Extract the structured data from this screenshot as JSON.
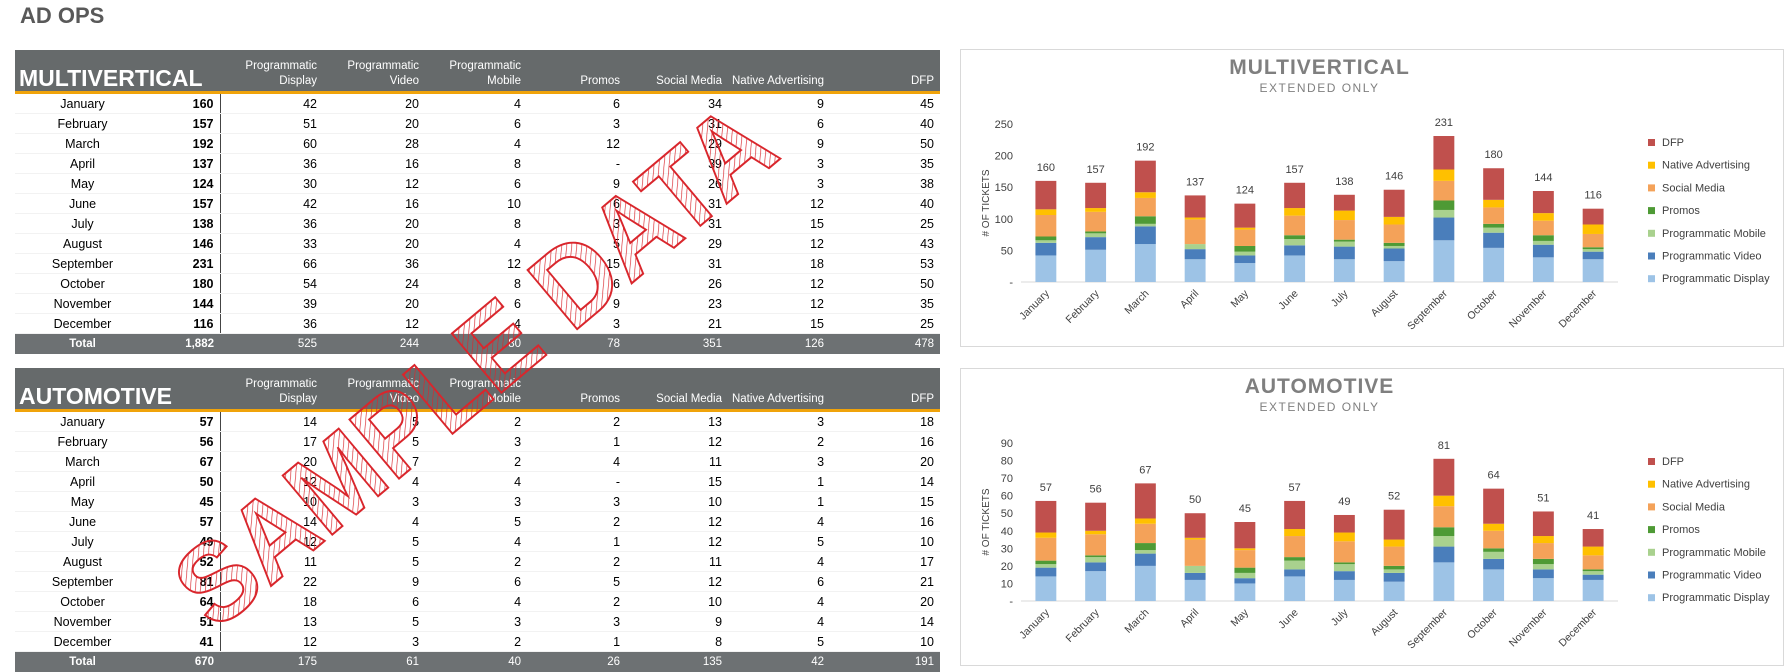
{
  "page_title": "AD OPS",
  "watermark": "SAMPLE DATA",
  "tables": [
    {
      "title": "MULTIVERTICAL",
      "columns": [
        "Programmatic Display",
        "Programmatic Video",
        "Programmatic Mobile",
        "Promos",
        "Social Media",
        "Native Advertising",
        "DFP"
      ],
      "rows": [
        [
          "January",
          160,
          42,
          20,
          4,
          6,
          34,
          9,
          45
        ],
        [
          "February",
          157,
          51,
          20,
          6,
          3,
          31,
          6,
          40
        ],
        [
          "March",
          192,
          60,
          28,
          4,
          12,
          29,
          9,
          50
        ],
        [
          "April",
          137,
          36,
          16,
          8,
          "-",
          39,
          3,
          35
        ],
        [
          "May",
          124,
          30,
          12,
          6,
          9,
          26,
          3,
          38
        ],
        [
          "June",
          157,
          42,
          16,
          10,
          6,
          31,
          12,
          40
        ],
        [
          "July",
          138,
          36,
          20,
          8,
          3,
          31,
          15,
          25
        ],
        [
          "August",
          146,
          33,
          20,
          4,
          5,
          29,
          12,
          43
        ],
        [
          "September",
          231,
          66,
          36,
          12,
          15,
          31,
          18,
          53
        ],
        [
          "October",
          180,
          54,
          24,
          8,
          6,
          26,
          12,
          50
        ],
        [
          "November",
          144,
          39,
          20,
          6,
          9,
          23,
          12,
          35
        ],
        [
          "December",
          116,
          36,
          12,
          4,
          3,
          21,
          15,
          25
        ]
      ],
      "total": [
        "Total",
        "1,882",
        525,
        244,
        80,
        78,
        351,
        126,
        478
      ]
    },
    {
      "title": "AUTOMOTIVE",
      "columns": [
        "Programmatic Display",
        "Programmatic Video",
        "Programmatic Mobile",
        "Promos",
        "Social Media",
        "Native Advertising",
        "DFP"
      ],
      "rows": [
        [
          "January",
          57,
          14,
          5,
          2,
          2,
          13,
          3,
          18
        ],
        [
          "February",
          56,
          17,
          5,
          3,
          1,
          12,
          2,
          16
        ],
        [
          "March",
          67,
          20,
          7,
          2,
          4,
          11,
          3,
          20
        ],
        [
          "April",
          50,
          12,
          4,
          4,
          "-",
          15,
          1,
          14
        ],
        [
          "May",
          45,
          10,
          3,
          3,
          3,
          10,
          1,
          15
        ],
        [
          "June",
          57,
          14,
          4,
          5,
          2,
          12,
          4,
          16
        ],
        [
          "July",
          49,
          12,
          5,
          4,
          1,
          12,
          5,
          10
        ],
        [
          "August",
          52,
          11,
          5,
          2,
          2,
          11,
          4,
          17
        ],
        [
          "September",
          81,
          22,
          9,
          6,
          5,
          12,
          6,
          21
        ],
        [
          "October",
          64,
          18,
          6,
          4,
          2,
          10,
          4,
          20
        ],
        [
          "November",
          51,
          13,
          5,
          3,
          3,
          9,
          4,
          14
        ],
        [
          "December",
          41,
          12,
          3,
          2,
          1,
          8,
          5,
          10
        ]
      ],
      "total": [
        "Total",
        670,
        175,
        61,
        40,
        26,
        135,
        42,
        191
      ]
    }
  ],
  "chart_data": [
    {
      "type": "bar",
      "stacked": true,
      "title": "MULTIVERTICAL",
      "subtitle": "EXTENDED ONLY",
      "y_label": "# OF TICKETS",
      "categories": [
        "January",
        "February",
        "March",
        "April",
        "May",
        "June",
        "July",
        "August",
        "September",
        "October",
        "November",
        "December"
      ],
      "series": [
        {
          "name": "Programmatic Display",
          "color": "#9dc3e6",
          "values": [
            42,
            51,
            60,
            36,
            30,
            42,
            36,
            33,
            66,
            54,
            39,
            36
          ]
        },
        {
          "name": "Programmatic Video",
          "color": "#4a7ebb",
          "values": [
            20,
            20,
            28,
            16,
            12,
            16,
            20,
            20,
            36,
            24,
            20,
            12
          ]
        },
        {
          "name": "Programmatic Mobile",
          "color": "#a9d18e",
          "values": [
            4,
            6,
            4,
            8,
            6,
            10,
            8,
            4,
            12,
            8,
            6,
            4
          ]
        },
        {
          "name": "Promos",
          "color": "#4e9a35",
          "values": [
            6,
            3,
            12,
            0,
            9,
            6,
            3,
            5,
            15,
            6,
            9,
            3
          ]
        },
        {
          "name": "Social Media",
          "color": "#f4a259",
          "values": [
            34,
            31,
            29,
            39,
            26,
            31,
            31,
            29,
            31,
            26,
            23,
            21
          ]
        },
        {
          "name": "Native Advertising",
          "color": "#ffc000",
          "values": [
            9,
            6,
            9,
            3,
            3,
            12,
            15,
            12,
            18,
            12,
            12,
            15
          ]
        },
        {
          "name": "DFP",
          "color": "#c0504d",
          "values": [
            45,
            40,
            50,
            35,
            38,
            40,
            25,
            43,
            53,
            50,
            35,
            25
          ]
        }
      ],
      "totals": [
        160,
        157,
        192,
        137,
        124,
        157,
        138,
        146,
        231,
        180,
        144,
        116
      ],
      "ylim": [
        0,
        250
      ],
      "yticks": [
        {
          "value": 0,
          "label": "-"
        },
        50,
        100,
        150,
        200,
        250
      ]
    },
    {
      "type": "bar",
      "stacked": true,
      "title": "AUTOMOTIVE",
      "subtitle": "EXTENDED ONLY",
      "y_label": "# OF TICKETS",
      "categories": [
        "January",
        "February",
        "March",
        "April",
        "May",
        "June",
        "July",
        "August",
        "September",
        "October",
        "November",
        "December"
      ],
      "series": [
        {
          "name": "Programmatic Display",
          "color": "#9dc3e6",
          "values": [
            14,
            17,
            20,
            12,
            10,
            14,
            12,
            11,
            22,
            18,
            13,
            12
          ]
        },
        {
          "name": "Programmatic Video",
          "color": "#4a7ebb",
          "values": [
            5,
            5,
            7,
            4,
            3,
            4,
            5,
            5,
            9,
            6,
            5,
            3
          ]
        },
        {
          "name": "Programmatic Mobile",
          "color": "#a9d18e",
          "values": [
            2,
            3,
            2,
            4,
            3,
            5,
            4,
            2,
            6,
            4,
            3,
            2
          ]
        },
        {
          "name": "Promos",
          "color": "#4e9a35",
          "values": [
            2,
            1,
            4,
            0,
            3,
            2,
            1,
            2,
            5,
            2,
            3,
            1
          ]
        },
        {
          "name": "Social Media",
          "color": "#f4a259",
          "values": [
            13,
            12,
            11,
            15,
            10,
            12,
            12,
            11,
            12,
            10,
            9,
            8
          ]
        },
        {
          "name": "Native Advertising",
          "color": "#ffc000",
          "values": [
            3,
            2,
            3,
            1,
            1,
            4,
            5,
            4,
            6,
            4,
            4,
            5
          ]
        },
        {
          "name": "DFP",
          "color": "#c0504d",
          "values": [
            18,
            16,
            20,
            14,
            15,
            16,
            10,
            17,
            21,
            20,
            14,
            10
          ]
        }
      ],
      "totals": [
        57,
        56,
        67,
        50,
        45,
        57,
        49,
        52,
        81,
        64,
        51,
        41
      ],
      "ylim": [
        0,
        90
      ],
      "yticks": [
        {
          "value": 0,
          "label": "-"
        },
        10,
        20,
        30,
        40,
        50,
        60,
        70,
        80,
        90
      ]
    }
  ]
}
